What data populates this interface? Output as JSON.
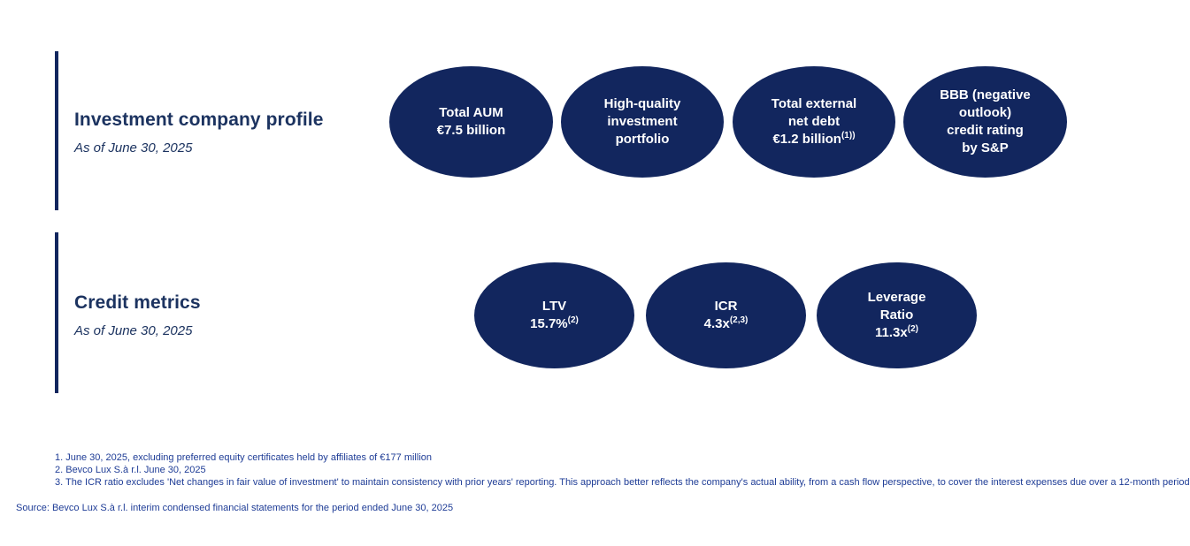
{
  "colors": {
    "bubble_fill": "#12265e",
    "heading_text": "#1c3360",
    "footnote_text": "#1e3c96",
    "background": "#ffffff"
  },
  "sections": [
    {
      "title": "Investment company profile",
      "subtitle": "As of June 30, 2025",
      "bubbles": [
        {
          "lines": [
            "Total AUM",
            "€7.5 billion"
          ],
          "sup": ""
        },
        {
          "lines": [
            "High-quality",
            "investment",
            "portfolio"
          ],
          "sup": ""
        },
        {
          "lines": [
            "Total external",
            "net debt",
            "€1.2 billion"
          ],
          "sup": "(1))"
        },
        {
          "lines": [
            "BBB (negative",
            "outlook)",
            "credit rating",
            "by S&P"
          ],
          "sup": ""
        }
      ]
    },
    {
      "title": "Credit metrics",
      "subtitle": "As of June 30, 2025",
      "bubbles": [
        {
          "lines": [
            "LTV",
            "15.7%"
          ],
          "sup": "(2)"
        },
        {
          "lines": [
            "ICR",
            "4.3x"
          ],
          "sup": "(2,3)"
        },
        {
          "lines": [
            "Leverage",
            "Ratio",
            "11.3x"
          ],
          "sup": "(2)"
        }
      ]
    }
  ],
  "footnotes": [
    "1. June 30, 2025, excluding preferred equity certificates held by affiliates of €177 million",
    "2. Bevco Lux S.à r.l. June 30, 2025",
    "3. The ICR ratio excludes 'Net changes in fair value of investment' to maintain consistency with prior years' reporting. This approach better reflects the company's actual ability, from a cash flow perspective, to cover the interest expenses due over a 12-month period"
  ],
  "source": "Source: Bevco Lux S.à r.l. interim condensed financial statements for the period ended June 30, 2025"
}
